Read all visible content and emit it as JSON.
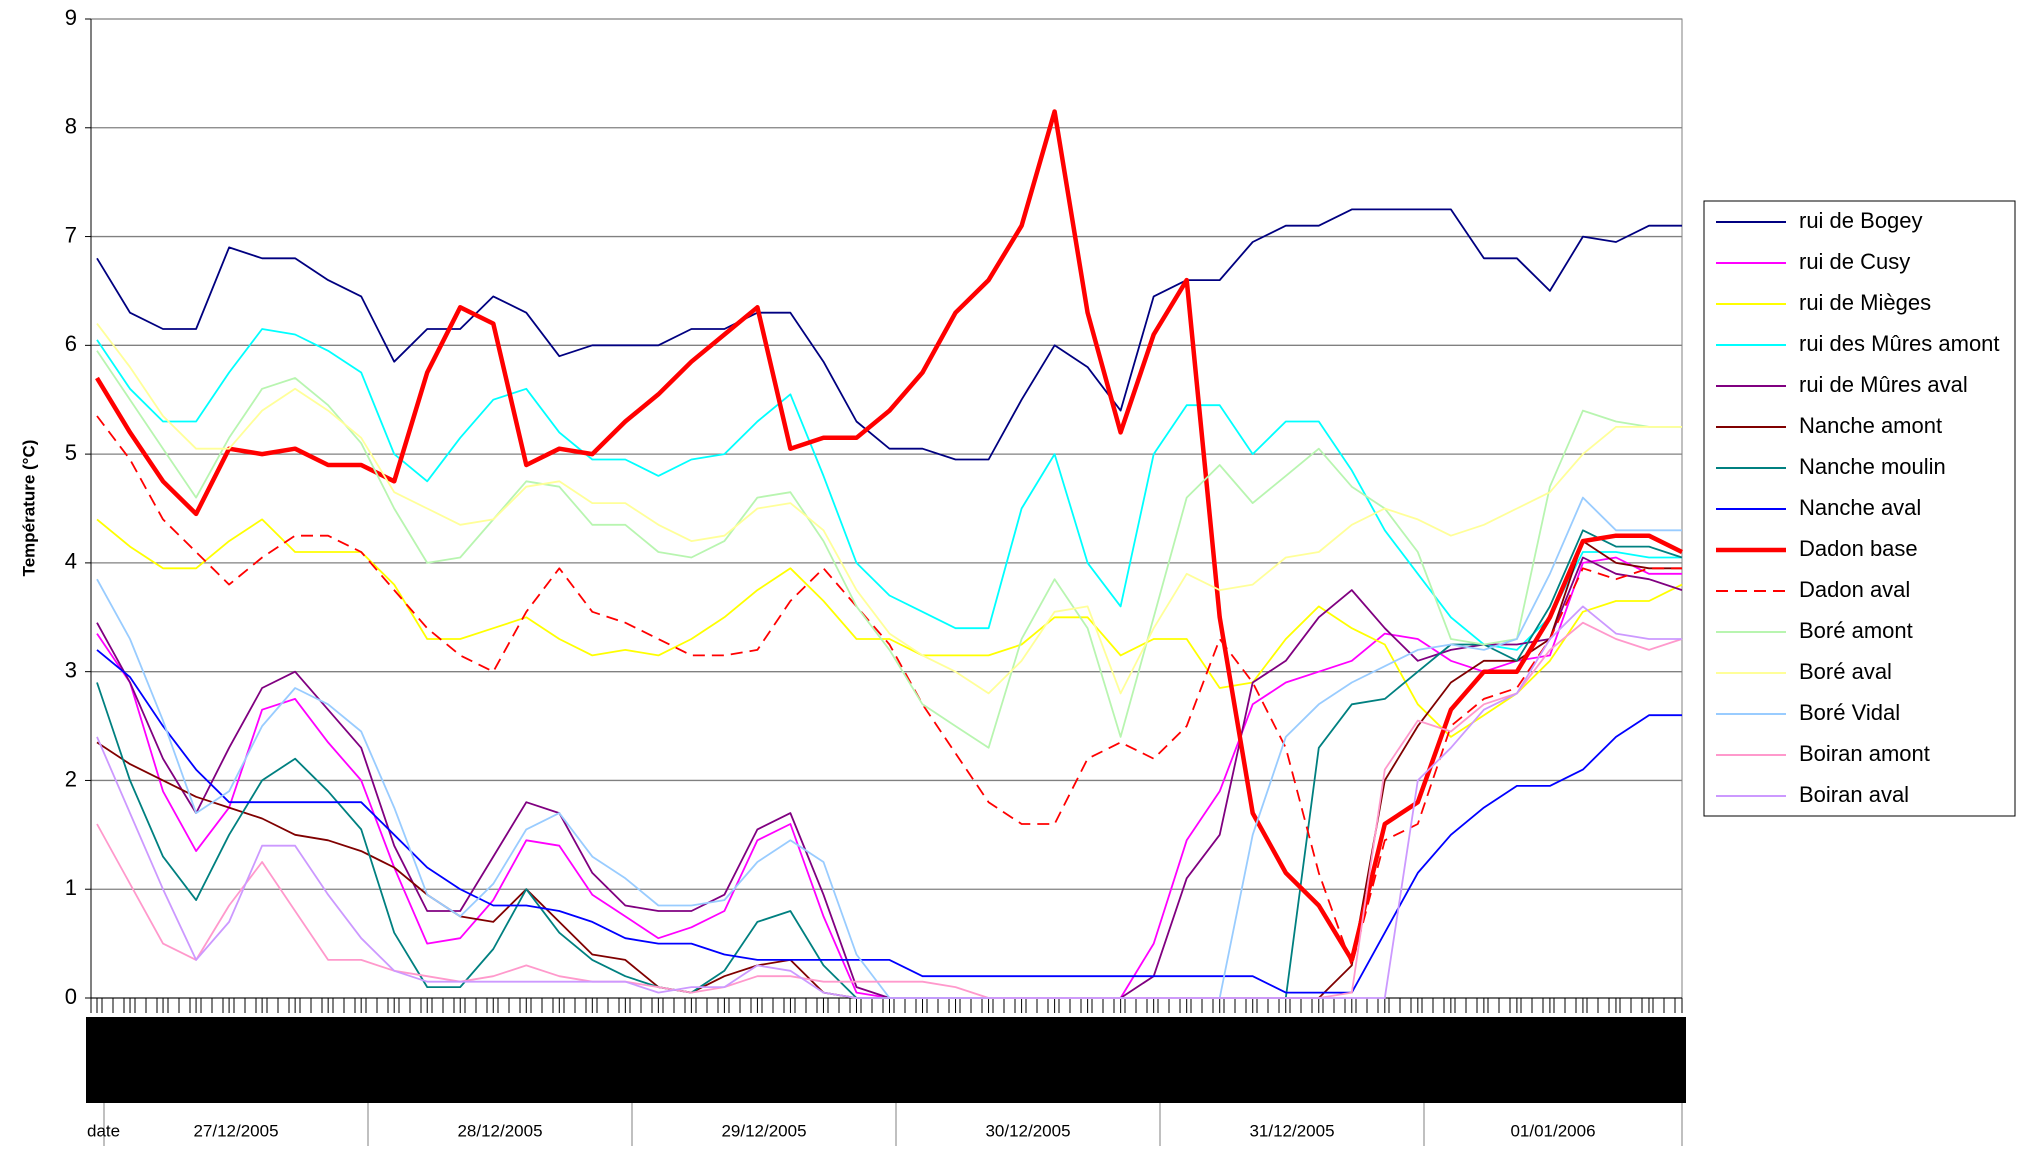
{
  "chart_data": {
    "type": "line",
    "y_label": "Température (°C)",
    "x_groups": [
      "date",
      "27/12/2005",
      "28/12/2005",
      "29/12/2005",
      "30/12/2005",
      "31/12/2005",
      "01/01/2006"
    ],
    "categories": [
      null,
      null,
      null,
      null,
      null,
      null,
      null,
      null,
      null,
      null,
      null,
      null,
      null,
      null,
      null,
      null,
      null,
      null,
      null,
      null,
      null,
      null,
      null,
      null,
      null,
      null,
      null,
      null,
      null,
      null,
      null,
      null,
      null,
      null,
      null,
      null,
      null,
      null,
      null,
      null,
      null,
      null,
      null,
      null,
      null,
      null,
      null,
      null,
      null
    ],
    "ylim": [
      0,
      9
    ],
    "yticks": [
      0,
      1,
      2,
      3,
      4,
      5,
      6,
      7,
      8,
      9
    ],
    "grid": true,
    "legend": "right",
    "series": [
      {
        "name": "rui de Bogey",
        "color": "#000080",
        "values": [
          6.8,
          6.3,
          6.15,
          6.15,
          6.9,
          6.8,
          6.8,
          6.6,
          6.45,
          5.85,
          6.15,
          6.15,
          6.45,
          6.3,
          5.9,
          6.0,
          6.0,
          6.0,
          6.15,
          6.15,
          6.3,
          6.3,
          5.85,
          5.3,
          5.05,
          5.05,
          4.95,
          4.95,
          5.5,
          6.0,
          5.8,
          5.4,
          6.45,
          6.6,
          6.6,
          6.95,
          7.1,
          7.1,
          7.25,
          7.25,
          7.25,
          7.25,
          6.8,
          6.8,
          6.5,
          7.0,
          6.95,
          7.1,
          7.1
        ]
      },
      {
        "name": "rui de Cusy",
        "color": "#ff00ff",
        "values": [
          3.35,
          2.9,
          1.9,
          1.35,
          1.75,
          2.65,
          2.75,
          2.35,
          2.0,
          1.2,
          0.5,
          0.55,
          0.9,
          1.45,
          1.4,
          0.95,
          0.75,
          0.55,
          0.65,
          0.8,
          1.45,
          1.6,
          0.75,
          0.05,
          0,
          0,
          0,
          0,
          0,
          0,
          0,
          0,
          0.5,
          1.45,
          1.9,
          2.7,
          2.9,
          3.0,
          3.1,
          3.35,
          3.3,
          3.1,
          3.0,
          3.1,
          3.15,
          4.0,
          4.05,
          3.9,
          3.9
        ]
      },
      {
        "name": "rui de Mièges",
        "color": "#ffff00",
        "values": [
          4.4,
          4.15,
          3.95,
          3.95,
          4.2,
          4.4,
          4.1,
          4.1,
          4.1,
          3.8,
          3.3,
          3.3,
          3.4,
          3.5,
          3.3,
          3.15,
          3.2,
          3.15,
          3.3,
          3.5,
          3.75,
          3.95,
          3.65,
          3.3,
          3.3,
          3.15,
          3.15,
          3.15,
          3.25,
          3.5,
          3.5,
          3.15,
          3.3,
          3.3,
          2.85,
          2.9,
          3.3,
          3.6,
          3.4,
          3.25,
          2.7,
          2.4,
          2.6,
          2.8,
          3.1,
          3.55,
          3.65,
          3.65,
          3.8
        ]
      },
      {
        "name": "rui des Mûres amont",
        "color": "#00ffff",
        "values": [
          6.05,
          5.6,
          5.3,
          5.3,
          5.75,
          6.15,
          6.1,
          5.95,
          5.75,
          5.0,
          4.75,
          5.15,
          5.5,
          5.6,
          5.2,
          4.95,
          4.95,
          4.8,
          4.95,
          5.0,
          5.3,
          5.55,
          4.8,
          4.0,
          3.7,
          3.55,
          3.4,
          3.4,
          4.5,
          5.0,
          4.0,
          3.6,
          5.0,
          5.45,
          5.45,
          5.0,
          5.3,
          5.3,
          4.85,
          4.3,
          3.9,
          3.5,
          3.25,
          3.2,
          3.5,
          4.1,
          4.1,
          4.05,
          4.05
        ]
      },
      {
        "name": "rui de Mûres aval",
        "color": "#800080",
        "values": [
          3.45,
          2.9,
          2.2,
          1.7,
          2.3,
          2.85,
          3.0,
          2.65,
          2.3,
          1.4,
          0.8,
          0.8,
          1.3,
          1.8,
          1.7,
          1.15,
          0.85,
          0.8,
          0.8,
          0.95,
          1.55,
          1.7,
          0.95,
          0.1,
          0,
          0,
          0,
          0,
          0,
          0,
          0,
          0,
          0.2,
          1.1,
          1.5,
          2.9,
          3.1,
          3.5,
          3.75,
          3.4,
          3.1,
          3.2,
          3.25,
          3.25,
          3.3,
          4.05,
          3.9,
          3.85,
          3.75
        ]
      },
      {
        "name": "Nanche amont",
        "color": "#800000",
        "values": [
          2.35,
          2.15,
          2.0,
          1.85,
          1.75,
          1.65,
          1.5,
          1.45,
          1.35,
          1.2,
          0.95,
          0.75,
          0.7,
          1.0,
          0.7,
          0.4,
          0.35,
          0.1,
          0.05,
          0.2,
          0.3,
          0.35,
          0.05,
          0,
          0,
          0,
          0,
          0,
          0,
          0,
          0,
          0,
          0,
          0,
          0,
          0,
          0,
          0,
          0.3,
          2.0,
          2.5,
          2.9,
          3.1,
          3.1,
          3.3,
          4.2,
          4.0,
          3.95,
          3.95
        ]
      },
      {
        "name": "Nanche moulin",
        "color": "#008080",
        "values": [
          2.9,
          2.0,
          1.3,
          0.9,
          1.5,
          2.0,
          2.2,
          1.9,
          1.55,
          0.6,
          0.1,
          0.1,
          0.45,
          1.0,
          0.6,
          0.35,
          0.2,
          0.1,
          0.05,
          0.25,
          0.7,
          0.8,
          0.3,
          0,
          0,
          0,
          0,
          0,
          0,
          0,
          0,
          0,
          0,
          0,
          0,
          0,
          0,
          2.3,
          2.7,
          2.75,
          3.0,
          3.25,
          3.25,
          3.1,
          3.6,
          4.3,
          4.15,
          4.15,
          4.05
        ]
      },
      {
        "name": "Nanche aval",
        "color": "#0000ff",
        "values": [
          3.2,
          2.95,
          2.5,
          2.1,
          1.8,
          1.8,
          1.8,
          1.8,
          1.8,
          1.5,
          1.2,
          1.0,
          0.85,
          0.85,
          0.8,
          0.7,
          0.55,
          0.5,
          0.5,
          0.4,
          0.35,
          0.35,
          0.35,
          0.35,
          0.35,
          0.2,
          0.2,
          0.2,
          0.2,
          0.2,
          0.2,
          0.2,
          0.2,
          0.2,
          0.2,
          0.2,
          0.05,
          0.05,
          0.05,
          0.6,
          1.15,
          1.5,
          1.75,
          1.95,
          1.95,
          2.1,
          2.4,
          2.6,
          2.6
        ]
      },
      {
        "name": "Dadon base",
        "color": "#ff0000",
        "bold": true,
        "values": [
          5.7,
          5.2,
          4.75,
          4.45,
          5.05,
          5.0,
          5.05,
          4.9,
          4.9,
          4.75,
          5.75,
          6.35,
          6.2,
          4.9,
          5.05,
          5.0,
          5.3,
          5.55,
          5.85,
          6.1,
          6.35,
          5.05,
          5.15,
          5.15,
          5.4,
          5.75,
          6.3,
          6.6,
          7.1,
          8.15,
          6.3,
          5.2,
          6.1,
          6.6,
          3.5,
          1.7,
          1.15,
          0.85,
          0.35,
          1.6,
          1.8,
          2.65,
          3.0,
          3.0,
          3.5,
          4.2,
          4.25,
          4.25,
          4.1
        ]
      },
      {
        "name": "Dadon aval",
        "color": "#ff0000",
        "dashed": true,
        "values": [
          5.35,
          4.95,
          4.4,
          4.1,
          3.8,
          4.05,
          4.25,
          4.25,
          4.1,
          3.75,
          3.4,
          3.15,
          3.0,
          3.55,
          3.95,
          3.55,
          3.45,
          3.3,
          3.15,
          3.15,
          3.2,
          3.65,
          3.95,
          3.6,
          3.25,
          2.7,
          2.25,
          1.8,
          1.6,
          1.6,
          2.2,
          2.35,
          2.2,
          2.5,
          3.3,
          2.9,
          2.3,
          1.15,
          0.3,
          1.45,
          1.6,
          2.5,
          2.75,
          2.85,
          3.3,
          3.95,
          3.85,
          3.95,
          3.95
        ]
      },
      {
        "name": "Boré amont",
        "color": "#b8f5b0",
        "values": [
          5.95,
          5.5,
          5.05,
          4.6,
          5.15,
          5.6,
          5.7,
          5.45,
          5.1,
          4.5,
          4.0,
          4.05,
          4.4,
          4.75,
          4.7,
          4.35,
          4.35,
          4.1,
          4.05,
          4.2,
          4.6,
          4.65,
          4.2,
          3.6,
          3.2,
          2.7,
          2.5,
          2.3,
          3.3,
          3.85,
          3.4,
          2.4,
          3.5,
          4.6,
          4.9,
          4.55,
          4.8,
          5.05,
          4.7,
          4.5,
          4.1,
          3.3,
          3.25,
          3.3,
          4.7,
          5.4,
          5.3,
          5.25,
          5.25
        ]
      },
      {
        "name": "Boré aval",
        "color": "#ffff99",
        "values": [
          6.2,
          5.8,
          5.35,
          5.05,
          5.05,
          5.4,
          5.6,
          5.4,
          5.15,
          4.65,
          4.5,
          4.35,
          4.4,
          4.7,
          4.75,
          4.55,
          4.55,
          4.35,
          4.2,
          4.25,
          4.5,
          4.55,
          4.3,
          3.75,
          3.35,
          3.15,
          3.0,
          2.8,
          3.1,
          3.55,
          3.6,
          2.8,
          3.4,
          3.9,
          3.75,
          3.8,
          4.05,
          4.1,
          4.35,
          4.5,
          4.4,
          4.25,
          4.35,
          4.5,
          4.65,
          5.0,
          5.25,
          5.25,
          5.25
        ]
      },
      {
        "name": "Boré Vidal",
        "color": "#99ccff",
        "values": [
          3.85,
          3.3,
          2.55,
          1.7,
          1.9,
          2.5,
          2.85,
          2.7,
          2.45,
          1.75,
          0.95,
          0.75,
          1.05,
          1.55,
          1.7,
          1.3,
          1.1,
          0.85,
          0.85,
          0.9,
          1.25,
          1.45,
          1.25,
          0.4,
          0,
          0,
          0,
          0,
          0,
          0,
          0,
          0,
          0,
          0,
          0,
          1.5,
          2.4,
          2.7,
          2.9,
          3.05,
          3.2,
          3.25,
          3.2,
          3.3,
          3.9,
          4.6,
          4.3,
          4.3,
          4.3
        ]
      },
      {
        "name": "Boiran amont",
        "color": "#ff99cc",
        "values": [
          1.6,
          1.05,
          0.5,
          0.35,
          0.85,
          1.25,
          0.8,
          0.35,
          0.35,
          0.25,
          0.2,
          0.15,
          0.2,
          0.3,
          0.2,
          0.15,
          0.15,
          0.1,
          0.05,
          0.1,
          0.2,
          0.2,
          0.15,
          0.15,
          0.15,
          0.15,
          0.1,
          0,
          0,
          0,
          0,
          0,
          0,
          0,
          0,
          0,
          0,
          0,
          0.05,
          2.1,
          2.55,
          2.45,
          2.7,
          2.8,
          3.2,
          3.45,
          3.3,
          3.2,
          3.3
        ]
      },
      {
        "name": "Boiran aval",
        "color": "#cc99ff",
        "values": [
          2.4,
          1.7,
          1.0,
          0.35,
          0.7,
          1.4,
          1.4,
          0.95,
          0.55,
          0.25,
          0.15,
          0.15,
          0.15,
          0.15,
          0.15,
          0.15,
          0.15,
          0.05,
          0.1,
          0.1,
          0.3,
          0.25,
          0.05,
          0,
          0,
          0,
          0,
          0,
          0,
          0,
          0,
          0,
          0,
          0,
          0,
          0,
          0,
          0,
          0,
          0,
          2.0,
          2.3,
          2.65,
          2.8,
          3.3,
          3.6,
          3.35,
          3.3,
          3.3
        ]
      }
    ]
  }
}
